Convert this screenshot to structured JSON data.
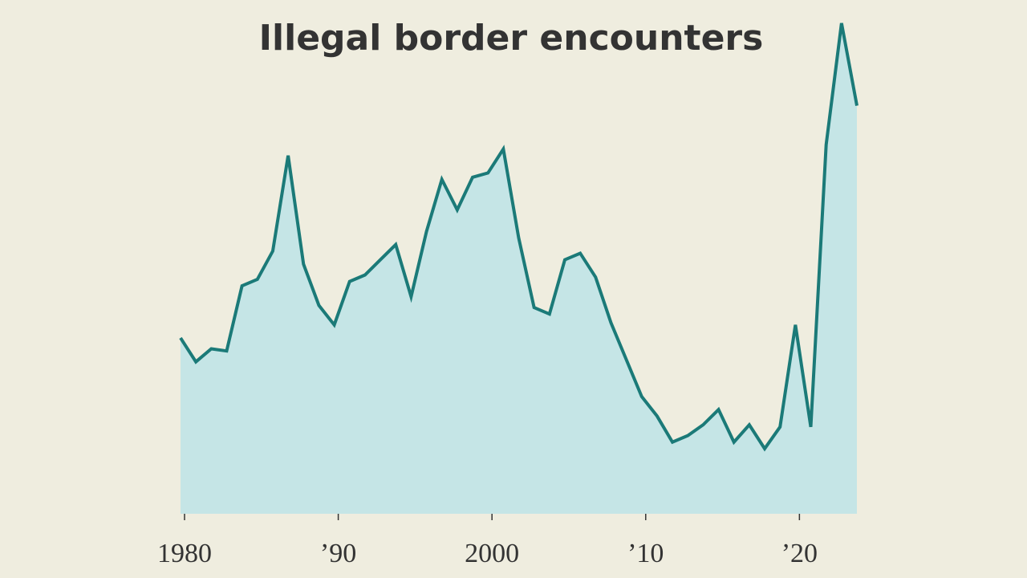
{
  "chart_data": {
    "type": "area",
    "title": "Illegal border encounters",
    "x": [
      1980,
      1981,
      1982,
      1983,
      1984,
      1985,
      1986,
      1987,
      1988,
      1989,
      1990,
      1991,
      1992,
      1993,
      1994,
      1995,
      1996,
      1997,
      1998,
      1999,
      2000,
      2001,
      2002,
      2003,
      2004,
      2005,
      2006,
      2007,
      2008,
      2009,
      2010,
      2011,
      2012,
      2013,
      2014,
      2015,
      2016,
      2017,
      2018,
      2019,
      2020,
      2021,
      2022,
      2023,
      2024
    ],
    "values": [
      0.81,
      0.7,
      0.76,
      0.75,
      1.05,
      1.08,
      1.21,
      1.65,
      1.15,
      0.96,
      0.87,
      1.07,
      1.1,
      1.17,
      1.24,
      1.0,
      1.3,
      1.54,
      1.4,
      1.55,
      1.57,
      1.68,
      1.27,
      0.95,
      0.92,
      1.17,
      1.2,
      1.09,
      0.88,
      0.71,
      0.54,
      0.45,
      0.33,
      0.36,
      0.41,
      0.48,
      0.33,
      0.41,
      0.3,
      0.4,
      0.87,
      0.4,
      1.7,
      2.26,
      1.88
    ],
    "color": "#1b7a78",
    "fill": "#c5e5e6",
    "xlim": [
      1980,
      2024
    ],
    "xticks": [
      1980,
      {
        "value": 1990,
        "label": "’90"
      },
      2000,
      {
        "value": 2010,
        "label": "’10"
      },
      {
        "value": 2020,
        "label": "’20"
      }
    ],
    "ylim": [
      0,
      2.3
    ]
  }
}
